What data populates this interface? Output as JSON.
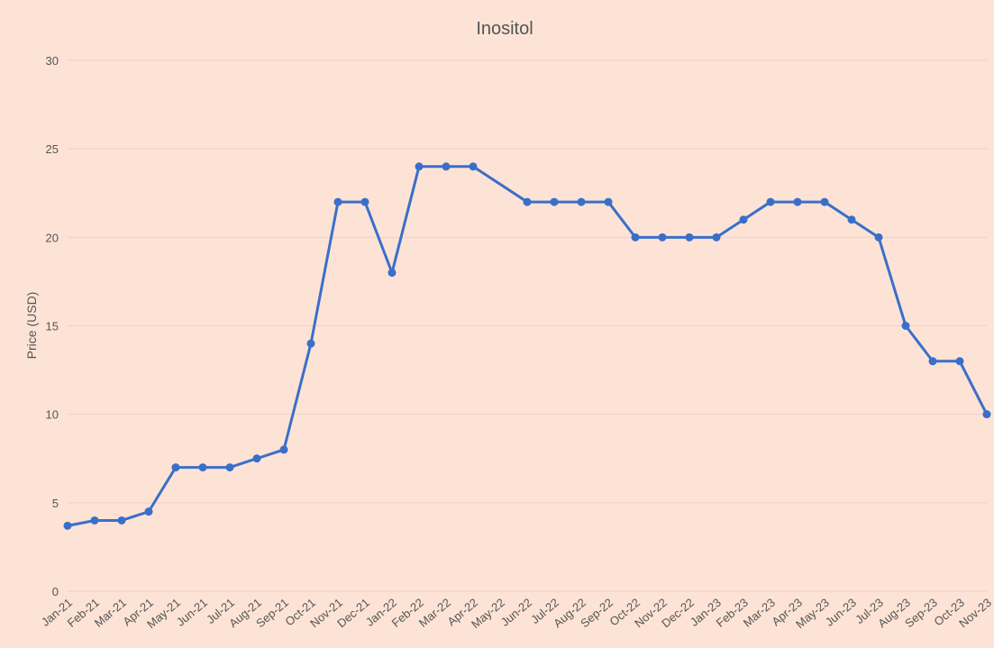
{
  "chart_data": {
    "type": "line",
    "title": "Inositol",
    "xlabel": "",
    "ylabel": "Price (USD)",
    "ylim": [
      0,
      30
    ],
    "yticks": [
      0,
      5,
      10,
      15,
      20,
      25,
      30
    ],
    "grid": true,
    "legend": "none",
    "line_color": "#3a6fc9",
    "categories": [
      "Jan-21",
      "Feb-21",
      "Mar-21",
      "Apr-21",
      "May-21",
      "Jun-21",
      "Jul-21",
      "Aug-21",
      "Sep-21",
      "Oct-21",
      "Nov-21",
      "Dec-21",
      "Jan-22",
      "Feb-22",
      "Mar-22",
      "Apr-22",
      "May-22",
      "Jun-22",
      "Jul-22",
      "Aug-22",
      "Sep-22",
      "Oct-22",
      "Nov-22",
      "Dec-22",
      "Jan-23",
      "Feb-23",
      "Mar-23",
      "Apr-23",
      "May-23",
      "Jun-23",
      "Jul-23",
      "Aug-23",
      "Sep-23",
      "Oct-23",
      "Nov-23"
    ],
    "series": [
      {
        "values": [
          3.7,
          4,
          4,
          4.5,
          7,
          7,
          7,
          7.5,
          8,
          14,
          22,
          22,
          18,
          24,
          24,
          24,
          null,
          22,
          22,
          22,
          22,
          20,
          20,
          20,
          20,
          21,
          22,
          22,
          22,
          21,
          20,
          15,
          13,
          13,
          10
        ]
      }
    ]
  }
}
